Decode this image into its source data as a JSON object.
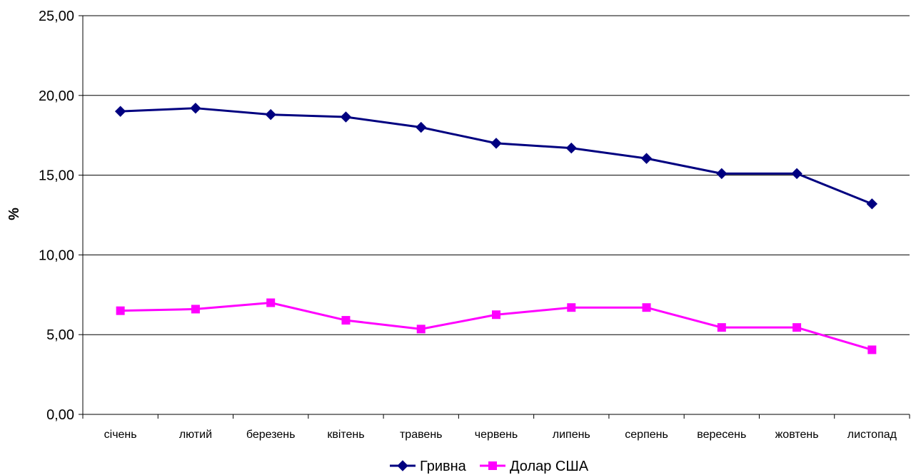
{
  "chart_data": {
    "type": "line",
    "categories": [
      "січень",
      "лютий",
      "березень",
      "квітень",
      "травень",
      "червень",
      "липень",
      "серпень",
      "вересень",
      "жовтень",
      "листопад"
    ],
    "series": [
      {
        "name": "Гривна",
        "color": "#000080",
        "marker": "diamond",
        "values": [
          19.0,
          19.2,
          18.8,
          18.65,
          18.0,
          17.0,
          16.7,
          16.05,
          15.1,
          15.1,
          13.2
        ]
      },
      {
        "name": "Долар США",
        "color": "#FF00FF",
        "marker": "square",
        "values": [
          6.5,
          6.6,
          7.0,
          5.9,
          5.35,
          6.25,
          6.7,
          6.7,
          5.45,
          5.45,
          4.05
        ]
      }
    ],
    "ylabel": "%",
    "ylim": [
      0,
      25
    ],
    "yticks": [
      "0,00",
      "5,00",
      "10,00",
      "15,00",
      "20,00",
      "25,00"
    ],
    "grid": true,
    "legend_position": "bottom"
  }
}
